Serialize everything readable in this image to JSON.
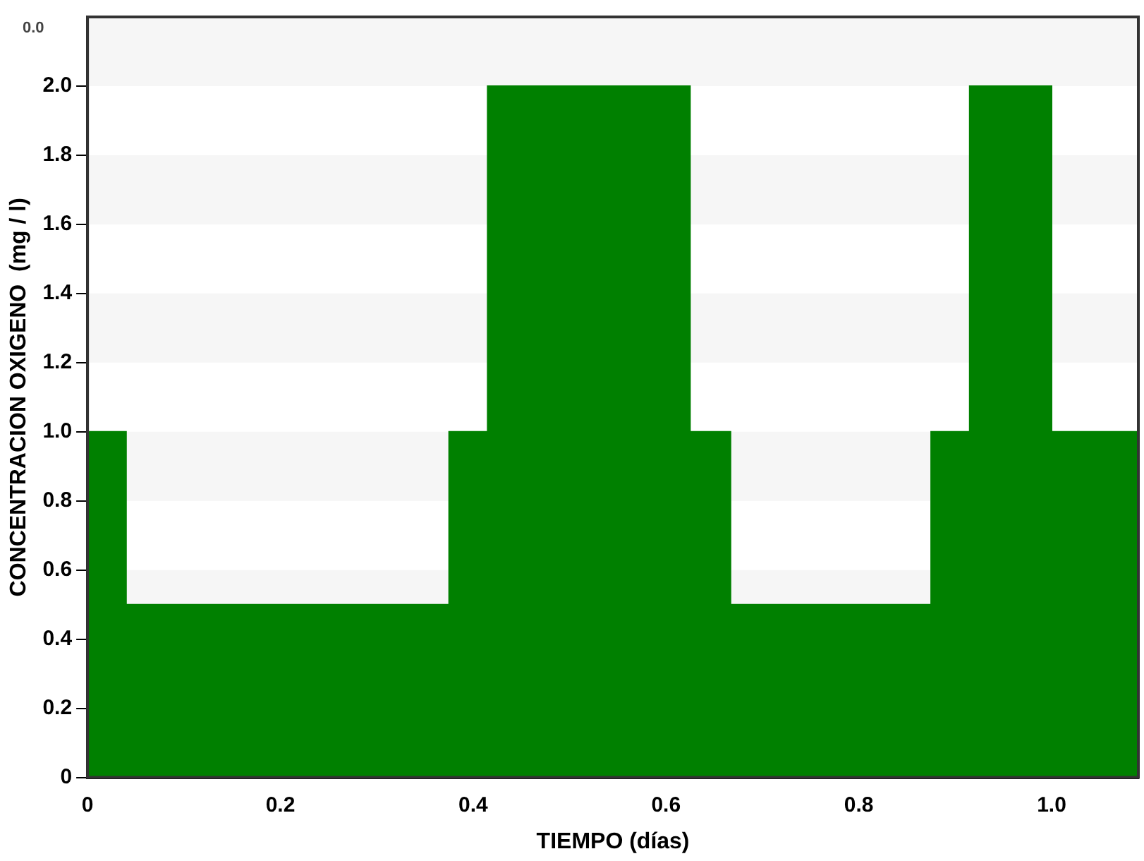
{
  "chart_data": {
    "type": "area",
    "xlabel": "TIEMPO (días)",
    "ylabel": "CONCENTRACION OXIGENO  (mg / l)",
    "x": [
      0,
      0.04,
      0.04,
      0.375,
      0.375,
      0.415,
      0.415,
      0.625,
      0.625,
      0.667,
      0.667,
      0.875,
      0.875,
      0.915,
      0.915,
      1.0,
      1.0,
      1.09
    ],
    "series": [
      {
        "color": "#008000",
        "values": [
          1.0,
          1.0,
          0.5,
          0.5,
          1.0,
          1.0,
          2.0,
          2.0,
          1.0,
          1.0,
          0.5,
          0.5,
          1.0,
          1.0,
          2.0,
          2.0,
          1.0,
          1.0
        ]
      }
    ],
    "xlim": [
      0,
      1.09
    ],
    "xticks": [
      {
        "value": 0,
        "label": "0"
      },
      0.2,
      0.4,
      0.6,
      0.8,
      {
        "value": 1,
        "label": "1.0"
      }
    ],
    "ylim": [
      0,
      2.2
    ],
    "yticks": [
      {
        "value": 0,
        "label": "0"
      },
      0.2,
      0.4,
      0.6,
      0.8,
      {
        "value": 1,
        "label": "1.0"
      },
      1.2,
      1.4,
      1.6,
      1.8,
      {
        "value": 2,
        "label": "2.0"
      }
    ],
    "legend": false,
    "annotations": [
      "0.0"
    ]
  }
}
